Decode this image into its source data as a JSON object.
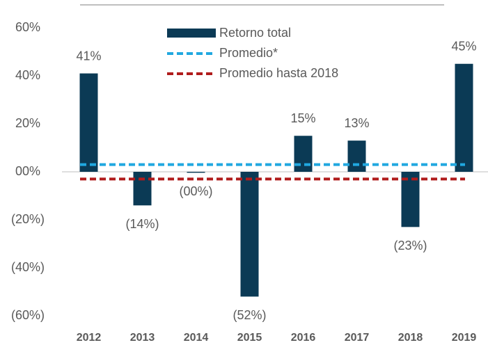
{
  "chart_data": {
    "type": "bar",
    "categories": [
      "2012",
      "2013",
      "2014",
      "2015",
      "2016",
      "2017",
      "2018",
      "2019"
    ],
    "series": [
      {
        "name": "Retorno total",
        "color": "#0b3a55",
        "values": [
          41,
          -14,
          -0.4,
          -52,
          15,
          13,
          -23,
          45
        ],
        "value_labels": [
          "41%",
          "(14%)",
          "(00%)",
          "(52%)",
          "15%",
          "13%",
          "(23%)",
          "45%"
        ]
      }
    ],
    "reference_lines": [
      {
        "name": "Promedio*",
        "color": "#21a8e0",
        "value": 3
      },
      {
        "name": "Promedio hasta 2018",
        "color": "#b01c1c",
        "value": -3
      }
    ],
    "ylim": [
      -60,
      60
    ],
    "yticks": [
      {
        "value": 60,
        "label": "60%"
      },
      {
        "value": 40,
        "label": "40%"
      },
      {
        "value": 20,
        "label": "20%"
      },
      {
        "value": 0,
        "label": "00%"
      },
      {
        "value": -20,
        "label": "(20%)"
      },
      {
        "value": -40,
        "label": "(40%)"
      },
      {
        "value": -60,
        "label": "(60%)"
      }
    ]
  }
}
